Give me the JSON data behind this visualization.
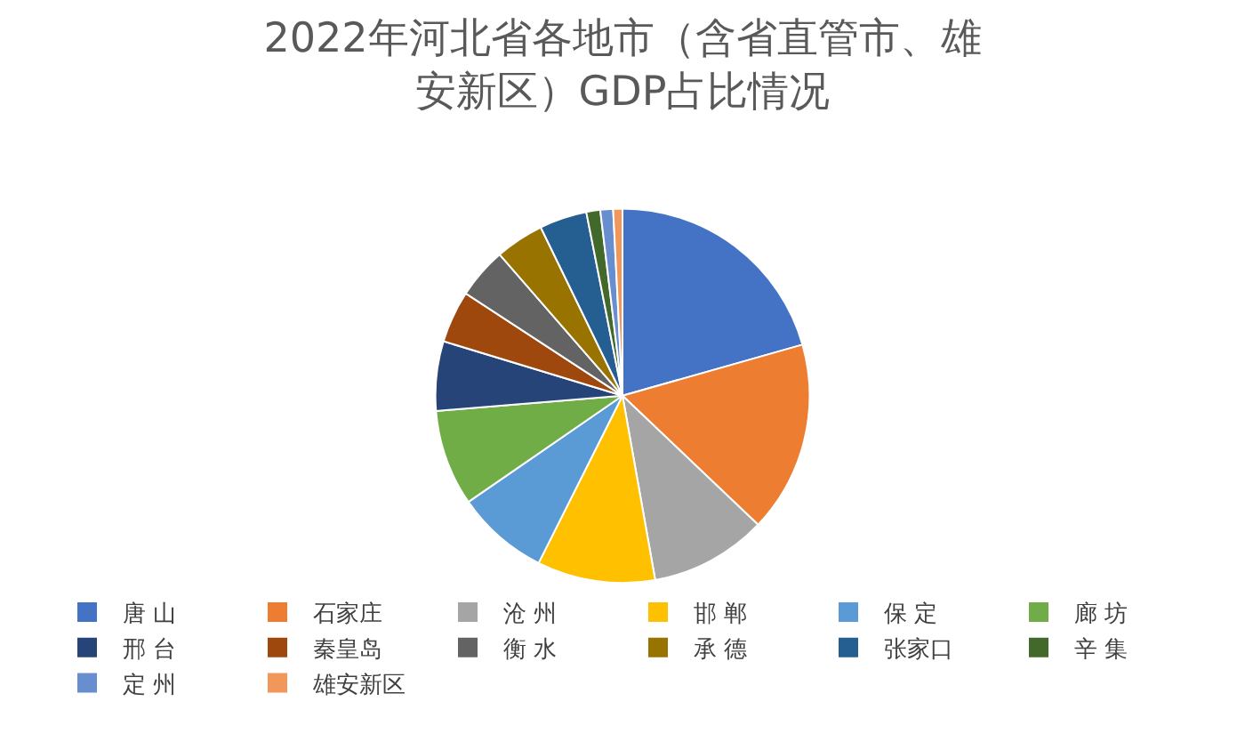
{
  "chart_data": {
    "type": "pie",
    "title": "2022年河北省各地市（含省直管市、雄安新区）GDP占比情况",
    "categories": [
      "唐 山",
      "石家庄",
      "沧 州",
      "邯 郸",
      "保 定",
      "廊 坊",
      "邢 台",
      "秦皇岛",
      "衡 水",
      "承 德",
      "张家口",
      "辛 集",
      "定 州",
      "雄安新区"
    ],
    "values": [
      20.6,
      16.5,
      10.1,
      10.2,
      8.0,
      8.3,
      6.0,
      4.5,
      4.4,
      4.2,
      4.1,
      1.2,
      1.1,
      0.8
    ],
    "colors": [
      "#4472c4",
      "#ed7d31",
      "#a5a5a5",
      "#ffc000",
      "#5b9bd5",
      "#70ad47",
      "#264478",
      "#9e480e",
      "#636363",
      "#997300",
      "#255e91",
      "#43682b",
      "#698ed0",
      "#f1975a"
    ],
    "legend": "bottom"
  }
}
